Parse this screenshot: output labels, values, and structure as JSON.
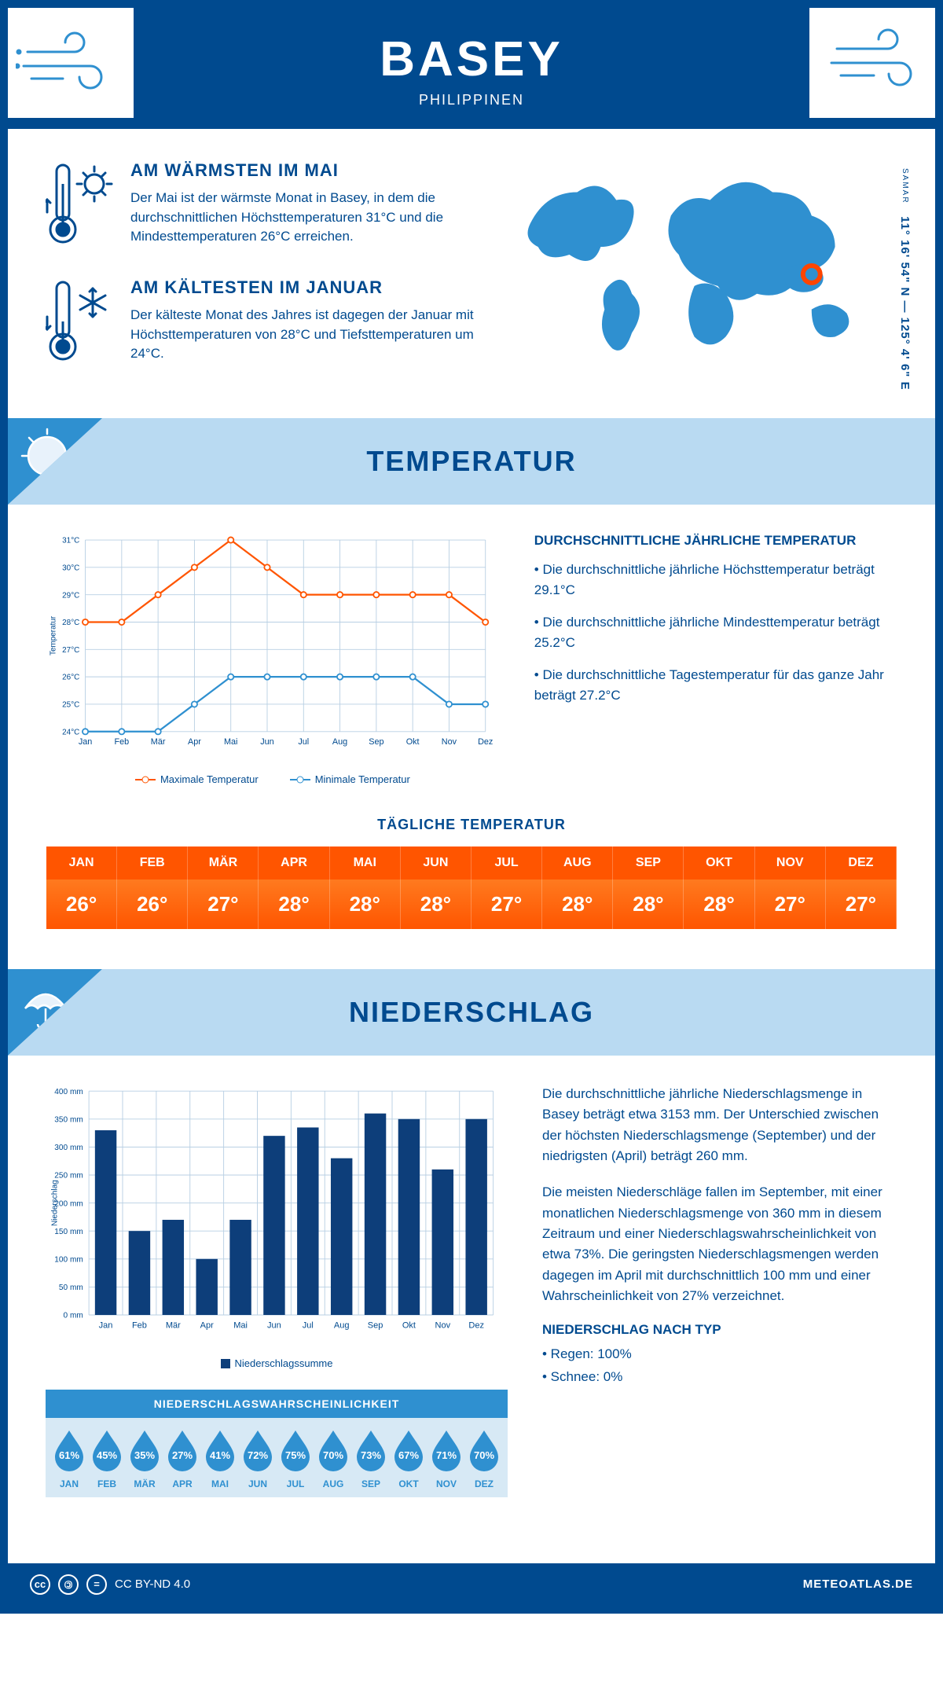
{
  "header": {
    "title": "BASEY",
    "subtitle": "PHILIPPINEN"
  },
  "coords": {
    "region": "SAMAR",
    "lat": "11° 16' 54\" N",
    "lon": "125° 4' 6\" E"
  },
  "facts": {
    "warm": {
      "title": "AM WÄRMSTEN IM MAI",
      "text": "Der Mai ist der wärmste Monat in Basey, in dem die durchschnittlichen Höchsttemperaturen 31°C und die Mindesttemperaturen 26°C erreichen."
    },
    "cold": {
      "title": "AM KÄLTESTEN IM JANUAR",
      "text": "Der kälteste Monat des Jahres ist dagegen der Januar mit Höchsttemperaturen von 28°C und Tiefsttemperaturen um 24°C."
    }
  },
  "sections": {
    "temperature": "TEMPERATUR",
    "precip": "NIEDERSCHLAG"
  },
  "months": [
    "Jan",
    "Feb",
    "Mär",
    "Apr",
    "Mai",
    "Jun",
    "Jul",
    "Aug",
    "Sep",
    "Okt",
    "Nov",
    "Dez"
  ],
  "months_upper": [
    "JAN",
    "FEB",
    "MÄR",
    "APR",
    "MAI",
    "JUN",
    "JUL",
    "AUG",
    "SEP",
    "OKT",
    "NOV",
    "DEZ"
  ],
  "temp_chart": {
    "ylabel": "Temperatur",
    "ylim": [
      24,
      31
    ],
    "yticks": [
      "24°C",
      "25°C",
      "26°C",
      "27°C",
      "28°C",
      "29°C",
      "30°C",
      "31°C"
    ],
    "max_series": {
      "label": "Maximale Temperatur",
      "color": "#ff5500",
      "values": [
        28,
        28,
        29,
        30,
        31,
        30,
        29,
        29,
        29,
        29,
        29,
        28
      ]
    },
    "min_series": {
      "label": "Minimale Temperatur",
      "color": "#2f90d0",
      "values": [
        24,
        24,
        24,
        25,
        26,
        26,
        26,
        26,
        26,
        26,
        25,
        25
      ]
    },
    "grid_color": "#b8cfe3",
    "background": "#ffffff"
  },
  "temp_summary": {
    "title": "DURCHSCHNITTLICHE JÄHRLICHE TEMPERATUR",
    "b1": "• Die durchschnittliche jährliche Höchsttemperatur beträgt 29.1°C",
    "b2": "• Die durchschnittliche jährliche Mindesttemperatur beträgt 25.2°C",
    "b3": "• Die durchschnittliche Tagestemperatur für das ganze Jahr beträgt 27.2°C"
  },
  "daily_temp": {
    "title": "TÄGLICHE TEMPERATUR",
    "values": [
      "26°",
      "26°",
      "27°",
      "28°",
      "28°",
      "28°",
      "27°",
      "28°",
      "28°",
      "28°",
      "27°",
      "27°"
    ],
    "header_bg": "#ff5500",
    "cell_bg": "#ff6a12"
  },
  "precip_chart": {
    "ylabel": "Niederschlag",
    "ylim": [
      0,
      400
    ],
    "ytick_step": 50,
    "yticks": [
      "0 mm",
      "50 mm",
      "100 mm",
      "150 mm",
      "200 mm",
      "250 mm",
      "300 mm",
      "350 mm",
      "400 mm"
    ],
    "values": [
      330,
      150,
      170,
      100,
      170,
      320,
      335,
      280,
      360,
      350,
      260,
      350
    ],
    "bar_color": "#0d3e7a",
    "grid_color": "#b8cfe3",
    "legend": "Niederschlagssumme"
  },
  "precip_text": {
    "p1": "Die durchschnittliche jährliche Niederschlagsmenge in Basey beträgt etwa 3153 mm. Der Unterschied zwischen der höchsten Niederschlagsmenge (September) und der niedrigsten (April) beträgt 260 mm.",
    "p2": "Die meisten Niederschläge fallen im September, mit einer monatlichen Niederschlagsmenge von 360 mm in diesem Zeitraum und einer Niederschlagswahrscheinlichkeit von etwa 73%. Die geringsten Niederschlagsmengen werden dagegen im April mit durchschnittlich 100 mm und einer Wahrscheinlichkeit von 27% verzeichnet.",
    "type_title": "NIEDERSCHLAG NACH TYP",
    "type1": "• Regen: 100%",
    "type2": "• Schnee: 0%"
  },
  "prob": {
    "title": "NIEDERSCHLAGSWAHRSCHEINLICHKEIT",
    "values": [
      "61%",
      "45%",
      "35%",
      "27%",
      "41%",
      "72%",
      "75%",
      "70%",
      "73%",
      "67%",
      "71%",
      "70%"
    ],
    "drop_color": "#2f90d0"
  },
  "footer": {
    "license": "CC BY-ND 4.0",
    "brand": "METEOATLAS.DE"
  },
  "colors": {
    "primary": "#004a8f",
    "lightblue": "#b9daf2",
    "midblue": "#2f90d0",
    "orange": "#ff5500"
  }
}
